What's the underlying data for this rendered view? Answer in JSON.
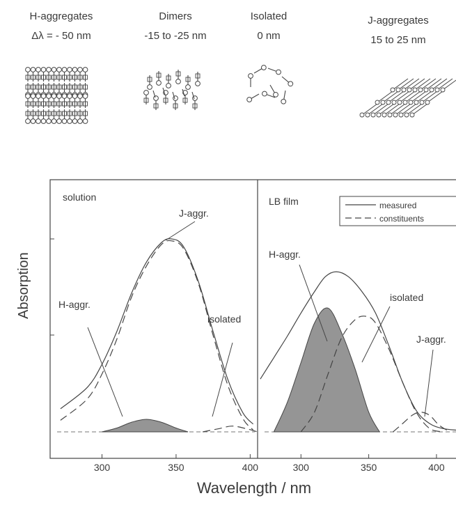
{
  "schematic": {
    "items": [
      {
        "name": "H-aggregates",
        "shift": "Δλ = - 50 nm"
      },
      {
        "name": "Dimers",
        "shift": "-15 to -25 nm"
      },
      {
        "name": "Isolated",
        "shift": "0 nm"
      },
      {
        "name": "J-aggregates",
        "shift": "15 to 25 nm"
      }
    ]
  },
  "chart_data": [
    {
      "type": "line",
      "panel_label": "solution",
      "xlabel": "Wavelength / nm",
      "ylabel": "Absorption",
      "xticks": [
        300,
        350,
        400
      ],
      "xlim": [
        265,
        405
      ],
      "ylim": [
        0,
        1
      ],
      "grid": false,
      "annotations": [
        "isolated",
        "H-aggr.",
        "J-aggr."
      ],
      "series": [
        {
          "role": "measured",
          "style": "solid",
          "x": [
            272,
            290,
            300,
            310,
            320,
            330,
            340,
            347,
            355,
            365,
            375,
            385,
            395,
            402
          ],
          "y": [
            0.12,
            0.23,
            0.35,
            0.52,
            0.72,
            0.88,
            0.98,
            1.0,
            0.96,
            0.78,
            0.52,
            0.27,
            0.1,
            0.04
          ]
        },
        {
          "role": "constituent",
          "style": "dashed",
          "component": "isolated",
          "x": [
            272,
            290,
            300,
            310,
            320,
            330,
            340,
            347,
            355,
            365,
            375,
            385,
            395,
            402
          ],
          "y": [
            0.06,
            0.17,
            0.3,
            0.48,
            0.7,
            0.86,
            0.97,
            0.99,
            0.95,
            0.77,
            0.5,
            0.24,
            0.07,
            0.01
          ]
        },
        {
          "role": "constituent",
          "style": "filled",
          "component": "H-aggr.",
          "x": [
            300,
            310,
            320,
            330,
            340,
            350,
            358
          ],
          "y": [
            0.0,
            0.02,
            0.05,
            0.065,
            0.05,
            0.02,
            0.0
          ]
        },
        {
          "role": "constituent",
          "style": "dashed",
          "component": "J-aggr.",
          "x": [
            368,
            378,
            388,
            398,
            405
          ],
          "y": [
            0.0,
            0.015,
            0.03,
            0.015,
            0.0
          ]
        }
      ]
    },
    {
      "type": "line",
      "panel_label": "LB film",
      "legend": {
        "position": "top-right",
        "entries": [
          {
            "label": "measured",
            "style": "solid"
          },
          {
            "label": "constituents",
            "style": "dashed"
          }
        ]
      },
      "xlabel": "Wavelength / nm",
      "xticks": [
        300,
        350,
        400
      ],
      "xlim": [
        268,
        418
      ],
      "ylim": [
        0,
        1
      ],
      "grid": false,
      "annotations": [
        "H-aggr.",
        "isolated",
        "J-aggr."
      ],
      "series": [
        {
          "role": "measured",
          "style": "solid",
          "x": [
            270,
            280,
            290,
            300,
            310,
            318,
            326,
            335,
            345,
            355,
            365,
            375,
            385,
            395,
            405,
            415
          ],
          "y": [
            0.32,
            0.45,
            0.58,
            0.72,
            0.85,
            0.94,
            0.97,
            0.94,
            0.85,
            0.72,
            0.52,
            0.3,
            0.13,
            0.05,
            0.02,
            0.01
          ]
        },
        {
          "role": "constituent",
          "style": "filled",
          "component": "H-aggr.",
          "x": [
            280,
            290,
            300,
            310,
            320,
            330,
            340,
            350,
            358
          ],
          "y": [
            0.0,
            0.18,
            0.42,
            0.66,
            0.75,
            0.6,
            0.38,
            0.12,
            0.0
          ]
        },
        {
          "role": "constituent",
          "style": "dashed",
          "component": "isolated",
          "x": [
            300,
            310,
            320,
            330,
            340,
            348,
            355,
            365,
            375,
            385,
            395,
            405
          ],
          "y": [
            0.0,
            0.12,
            0.35,
            0.57,
            0.68,
            0.7,
            0.66,
            0.5,
            0.3,
            0.12,
            0.02,
            0.0
          ]
        },
        {
          "role": "constituent",
          "style": "dashed",
          "component": "J-aggr.",
          "x": [
            368,
            375,
            382,
            388,
            395,
            402,
            410
          ],
          "y": [
            0.0,
            0.05,
            0.1,
            0.12,
            0.1,
            0.04,
            0.0
          ]
        }
      ]
    }
  ]
}
